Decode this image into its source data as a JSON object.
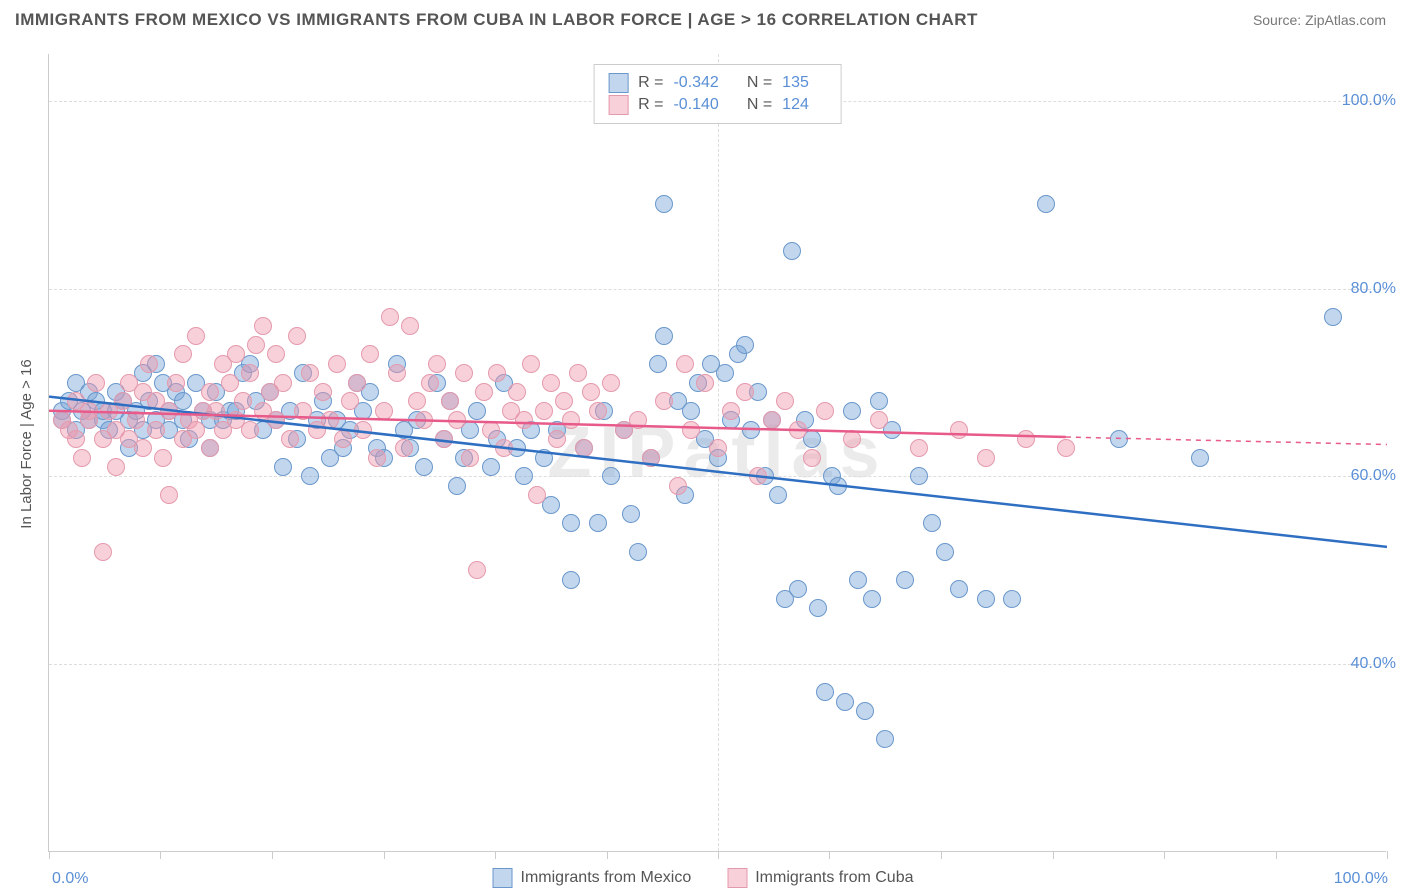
{
  "header": {
    "title": "IMMIGRANTS FROM MEXICO VS IMMIGRANTS FROM CUBA IN LABOR FORCE | AGE > 16 CORRELATION CHART",
    "source": "Source: ZipAtlas.com"
  },
  "chart": {
    "type": "scatter",
    "ylabel": "In Labor Force | Age > 16",
    "watermark": "ZIPatlas",
    "xlim": [
      0,
      100
    ],
    "ylim": [
      20,
      105
    ],
    "y_ticks": [
      40,
      60,
      80,
      100
    ],
    "y_tick_labels": [
      "40.0%",
      "60.0%",
      "80.0%",
      "100.0%"
    ],
    "x_ticks": [
      0,
      50,
      100
    ],
    "x_tick_labels": [
      "0.0%",
      "",
      "100.0%"
    ],
    "x_minor_ticks": [
      0,
      8.3,
      16.7,
      25,
      33.3,
      41.7,
      50,
      58.3,
      66.7,
      75,
      83.3,
      91.7,
      100
    ],
    "grid_color": "#dddddd",
    "axis_color": "#cccccc",
    "background": "#ffffff",
    "tick_label_color": "#5a8fd6",
    "tick_label_fontsize": 16,
    "series": [
      {
        "name": "Immigrants from Mexico",
        "fill": "rgba(120,165,216,0.45)",
        "stroke": "#6a98cc",
        "stroke_width": 1,
        "marker_radius": 9,
        "R": "-0.342",
        "N": "135",
        "trend": {
          "x1": 0,
          "y1": 68.5,
          "x2": 100,
          "y2": 52.5,
          "color": "#2f6fc2",
          "width": 2.5
        },
        "points": [
          [
            1,
            67
          ],
          [
            1,
            66
          ],
          [
            1.5,
            68
          ],
          [
            2,
            65
          ],
          [
            2,
            70
          ],
          [
            2.5,
            67
          ],
          [
            3,
            69
          ],
          [
            3,
            66
          ],
          [
            3.5,
            68
          ],
          [
            4,
            66
          ],
          [
            4,
            67
          ],
          [
            4.5,
            65
          ],
          [
            5,
            69
          ],
          [
            5,
            67
          ],
          [
            5.5,
            68
          ],
          [
            6,
            63
          ],
          [
            6,
            66
          ],
          [
            6.5,
            67
          ],
          [
            7,
            65
          ],
          [
            7,
            71
          ],
          [
            7.5,
            68
          ],
          [
            8,
            72
          ],
          [
            8,
            66
          ],
          [
            8.5,
            70
          ],
          [
            9,
            67
          ],
          [
            9,
            65
          ],
          [
            9.5,
            69
          ],
          [
            10,
            68
          ],
          [
            10,
            66
          ],
          [
            10.5,
            64
          ],
          [
            11,
            70
          ],
          [
            11.5,
            67
          ],
          [
            12,
            66
          ],
          [
            12,
            63
          ],
          [
            12.5,
            69
          ],
          [
            13,
            66
          ],
          [
            13.5,
            67
          ],
          [
            14,
            67
          ],
          [
            14.5,
            71
          ],
          [
            15,
            72
          ],
          [
            15.5,
            68
          ],
          [
            16,
            65
          ],
          [
            16.5,
            69
          ],
          [
            17,
            66
          ],
          [
            17.5,
            61
          ],
          [
            18,
            67
          ],
          [
            18.5,
            64
          ],
          [
            19,
            71
          ],
          [
            19.5,
            60
          ],
          [
            20,
            66
          ],
          [
            20.5,
            68
          ],
          [
            21,
            62
          ],
          [
            21.5,
            66
          ],
          [
            22,
            63
          ],
          [
            22.5,
            65
          ],
          [
            23,
            70
          ],
          [
            23.5,
            67
          ],
          [
            24,
            69
          ],
          [
            24.5,
            63
          ],
          [
            25,
            62
          ],
          [
            26,
            72
          ],
          [
            26.5,
            65
          ],
          [
            27,
            63
          ],
          [
            27.5,
            66
          ],
          [
            28,
            61
          ],
          [
            29,
            70
          ],
          [
            29.5,
            64
          ],
          [
            30,
            68
          ],
          [
            30.5,
            59
          ],
          [
            31,
            62
          ],
          [
            31.5,
            65
          ],
          [
            32,
            67
          ],
          [
            33,
            61
          ],
          [
            33.5,
            64
          ],
          [
            34,
            70
          ],
          [
            35,
            63
          ],
          [
            35.5,
            60
          ],
          [
            36,
            65
          ],
          [
            37,
            62
          ],
          [
            37.5,
            57
          ],
          [
            38,
            65
          ],
          [
            39,
            55
          ],
          [
            39,
            49
          ],
          [
            40,
            63
          ],
          [
            41,
            55
          ],
          [
            41.5,
            67
          ],
          [
            42,
            60
          ],
          [
            43,
            65
          ],
          [
            43.5,
            56
          ],
          [
            44,
            52
          ],
          [
            45,
            62
          ],
          [
            45.5,
            72
          ],
          [
            46,
            75
          ],
          [
            46,
            89
          ],
          [
            47,
            68
          ],
          [
            47.5,
            58
          ],
          [
            48,
            67
          ],
          [
            48.5,
            70
          ],
          [
            49,
            64
          ],
          [
            49.5,
            72
          ],
          [
            50,
            62
          ],
          [
            50.5,
            71
          ],
          [
            51,
            66
          ],
          [
            51.5,
            73
          ],
          [
            52,
            74
          ],
          [
            52.5,
            65
          ],
          [
            53,
            69
          ],
          [
            53.5,
            60
          ],
          [
            54,
            66
          ],
          [
            54.5,
            58
          ],
          [
            55,
            47
          ],
          [
            55.5,
            84
          ],
          [
            56,
            48
          ],
          [
            56.5,
            66
          ],
          [
            57,
            64
          ],
          [
            57.5,
            46
          ],
          [
            58,
            37
          ],
          [
            58.5,
            60
          ],
          [
            59,
            59
          ],
          [
            59.5,
            36
          ],
          [
            60,
            67
          ],
          [
            60.5,
            49
          ],
          [
            61,
            35
          ],
          [
            61.5,
            47
          ],
          [
            62,
            68
          ],
          [
            62.5,
            32
          ],
          [
            63,
            65
          ],
          [
            64,
            49
          ],
          [
            65,
            60
          ],
          [
            66,
            55
          ],
          [
            67,
            52
          ],
          [
            68,
            48
          ],
          [
            70,
            47
          ],
          [
            72,
            47
          ],
          [
            74.5,
            89
          ],
          [
            80,
            64
          ],
          [
            86,
            62
          ],
          [
            96,
            77
          ]
        ]
      },
      {
        "name": "Immigrants from Cuba",
        "fill": "rgba(240,150,170,0.45)",
        "stroke": "#e49aad",
        "stroke_width": 1,
        "marker_radius": 9,
        "R": "-0.140",
        "N": "124",
        "trend": {
          "x1": 0,
          "y1": 67,
          "x2": 76,
          "y2": 64.2,
          "color": "#e75a8a",
          "width": 2.5,
          "dashed_ext_x": 100,
          "dashed_ext_y": 63.4
        },
        "points": [
          [
            1,
            66
          ],
          [
            1.5,
            65
          ],
          [
            2,
            64
          ],
          [
            2,
            68
          ],
          [
            2.5,
            62
          ],
          [
            3,
            66
          ],
          [
            3,
            67
          ],
          [
            3.5,
            70
          ],
          [
            4,
            64
          ],
          [
            4,
            52
          ],
          [
            4.5,
            67
          ],
          [
            5,
            65
          ],
          [
            5,
            61
          ],
          [
            5.5,
            68
          ],
          [
            6,
            70
          ],
          [
            6,
            64
          ],
          [
            6.5,
            66
          ],
          [
            7,
            63
          ],
          [
            7,
            69
          ],
          [
            7.5,
            72
          ],
          [
            8,
            65
          ],
          [
            8,
            68
          ],
          [
            8.5,
            62
          ],
          [
            9,
            67
          ],
          [
            9,
            58
          ],
          [
            9.5,
            70
          ],
          [
            10,
            64
          ],
          [
            10,
            73
          ],
          [
            10.5,
            66
          ],
          [
            11,
            65
          ],
          [
            11,
            75
          ],
          [
            11.5,
            67
          ],
          [
            12,
            69
          ],
          [
            12,
            63
          ],
          [
            12.5,
            67
          ],
          [
            13,
            65
          ],
          [
            13,
            72
          ],
          [
            13.5,
            70
          ],
          [
            14,
            66
          ],
          [
            14,
            73
          ],
          [
            14.5,
            68
          ],
          [
            15,
            71
          ],
          [
            15,
            65
          ],
          [
            15.5,
            74
          ],
          [
            16,
            67
          ],
          [
            16,
            76
          ],
          [
            16.5,
            69
          ],
          [
            17,
            66
          ],
          [
            17,
            73
          ],
          [
            17.5,
            70
          ],
          [
            18,
            64
          ],
          [
            18.5,
            75
          ],
          [
            19,
            67
          ],
          [
            19.5,
            71
          ],
          [
            20,
            65
          ],
          [
            20.5,
            69
          ],
          [
            21,
            66
          ],
          [
            21.5,
            72
          ],
          [
            22,
            64
          ],
          [
            22.5,
            68
          ],
          [
            23,
            70
          ],
          [
            23.5,
            65
          ],
          [
            24,
            73
          ],
          [
            24.5,
            62
          ],
          [
            25,
            67
          ],
          [
            25.5,
            77
          ],
          [
            26,
            71
          ],
          [
            26.5,
            63
          ],
          [
            27,
            76
          ],
          [
            27.5,
            68
          ],
          [
            28,
            66
          ],
          [
            28.5,
            70
          ],
          [
            29,
            72
          ],
          [
            29.5,
            64
          ],
          [
            30,
            68
          ],
          [
            30.5,
            66
          ],
          [
            31,
            71
          ],
          [
            31.5,
            62
          ],
          [
            32,
            50
          ],
          [
            32.5,
            69
          ],
          [
            33,
            65
          ],
          [
            33.5,
            71
          ],
          [
            34,
            63
          ],
          [
            34.5,
            67
          ],
          [
            35,
            69
          ],
          [
            35.5,
            66
          ],
          [
            36,
            72
          ],
          [
            36.5,
            58
          ],
          [
            37,
            67
          ],
          [
            37.5,
            70
          ],
          [
            38,
            64
          ],
          [
            38.5,
            68
          ],
          [
            39,
            66
          ],
          [
            39.5,
            71
          ],
          [
            40,
            63
          ],
          [
            40.5,
            69
          ],
          [
            41,
            67
          ],
          [
            42,
            70
          ],
          [
            43,
            65
          ],
          [
            44,
            66
          ],
          [
            45,
            62
          ],
          [
            46,
            68
          ],
          [
            47,
            59
          ],
          [
            47.5,
            72
          ],
          [
            48,
            65
          ],
          [
            49,
            70
          ],
          [
            50,
            63
          ],
          [
            51,
            67
          ],
          [
            52,
            69
          ],
          [
            53,
            60
          ],
          [
            54,
            66
          ],
          [
            55,
            68
          ],
          [
            56,
            65
          ],
          [
            57,
            62
          ],
          [
            58,
            67
          ],
          [
            60,
            64
          ],
          [
            62,
            66
          ],
          [
            65,
            63
          ],
          [
            68,
            65
          ],
          [
            70,
            62
          ],
          [
            73,
            64
          ],
          [
            76,
            63
          ]
        ]
      }
    ],
    "legend_bottom": [
      {
        "label": "Immigrants from Mexico",
        "fill": "rgba(120,165,216,0.45)",
        "stroke": "#6a98cc"
      },
      {
        "label": "Immigrants from Cuba",
        "fill": "rgba(240,150,170,0.45)",
        "stroke": "#e49aad"
      }
    ]
  }
}
